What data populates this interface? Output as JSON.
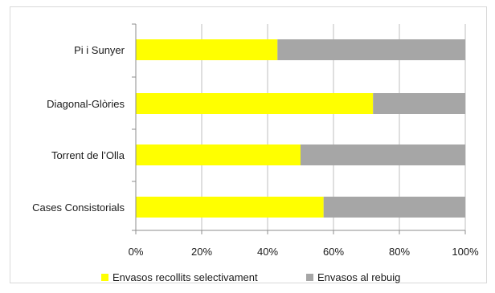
{
  "chart_data": {
    "type": "bar",
    "orientation": "horizontal",
    "stacked": true,
    "categories": [
      "Pi i Sunyer",
      "Diagonal-Glòries",
      "Torrent de l’Olla",
      "Cases Consistorials"
    ],
    "series": [
      {
        "name": "Envasos recollits selectivament",
        "color": "#ffff00",
        "values": [
          43,
          72,
          50,
          57
        ]
      },
      {
        "name": "Envasos al rebuig",
        "color": "#a6a6a6",
        "values": [
          57,
          28,
          50,
          43
        ]
      }
    ],
    "x_ticks": [
      "0%",
      "20%",
      "40%",
      "60%",
      "80%",
      "100%"
    ],
    "xlim": [
      0,
      100
    ],
    "grid": true,
    "legend_position": "bottom",
    "title": "",
    "xlabel": "",
    "ylabel": ""
  }
}
